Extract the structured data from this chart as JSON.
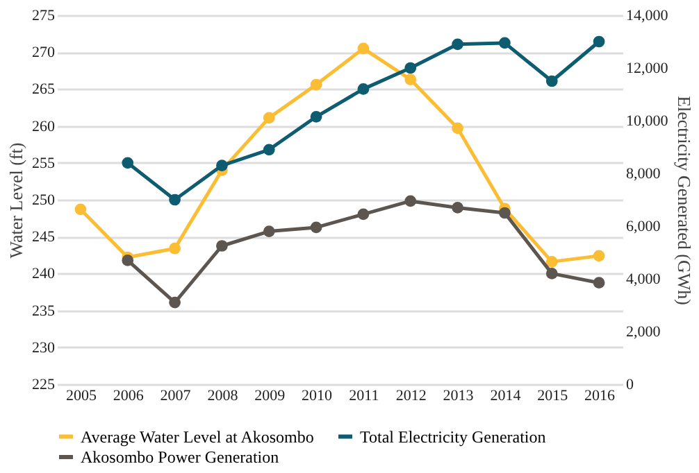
{
  "chart_data": {
    "type": "line",
    "categories": [
      "2005",
      "2006",
      "2007",
      "2008",
      "2009",
      "2010",
      "2011",
      "2012",
      "2013",
      "2014",
      "2015",
      "2016"
    ],
    "ylabel": "Water Level (ft)",
    "y2label": "Electricity Generated (GWh)",
    "ylim": [
      225,
      275
    ],
    "yticks": [
      225,
      230,
      235,
      240,
      245,
      250,
      255,
      260,
      265,
      270,
      275
    ],
    "y2lim": [
      0,
      14000
    ],
    "y2ticks": [
      0,
      {
        "value": 2000,
        "label": "2,000"
      },
      {
        "value": 4000,
        "label": "4,000"
      },
      {
        "value": 6000,
        "label": "6,000"
      },
      {
        "value": 8000,
        "label": "8,000"
      },
      {
        "value": 10000,
        "label": "10,000"
      },
      {
        "value": 12000,
        "label": "12,000"
      },
      {
        "value": 14000,
        "label": "14,000"
      }
    ],
    "grid": "y",
    "legend": "bottom",
    "marker": "circle",
    "line_style": "solid",
    "series": [
      {
        "name": "Average Water Level at Akosombo",
        "color": "#fbbd33",
        "values": [
          248.7,
          242.2,
          243.4,
          254.0,
          261.1,
          265.6,
          270.5,
          266.3,
          259.7,
          248.8,
          241.6,
          242.4
        ]
      },
      {
        "name": "Total Electricity Generation",
        "color": "#0d5c70",
        "axis": "y2",
        "values": [
          null,
          8400,
          7000,
          8300,
          8900,
          10150,
          11200,
          12000,
          12900,
          12950,
          11500,
          13000
        ]
      },
      {
        "name": "Akosombo Power Generation",
        "color": "#5d5650",
        "axis": "y2",
        "values": [
          null,
          4700,
          3100,
          5250,
          5800,
          5950,
          6450,
          6950,
          6700,
          6500,
          4200,
          3850
        ]
      }
    ]
  }
}
